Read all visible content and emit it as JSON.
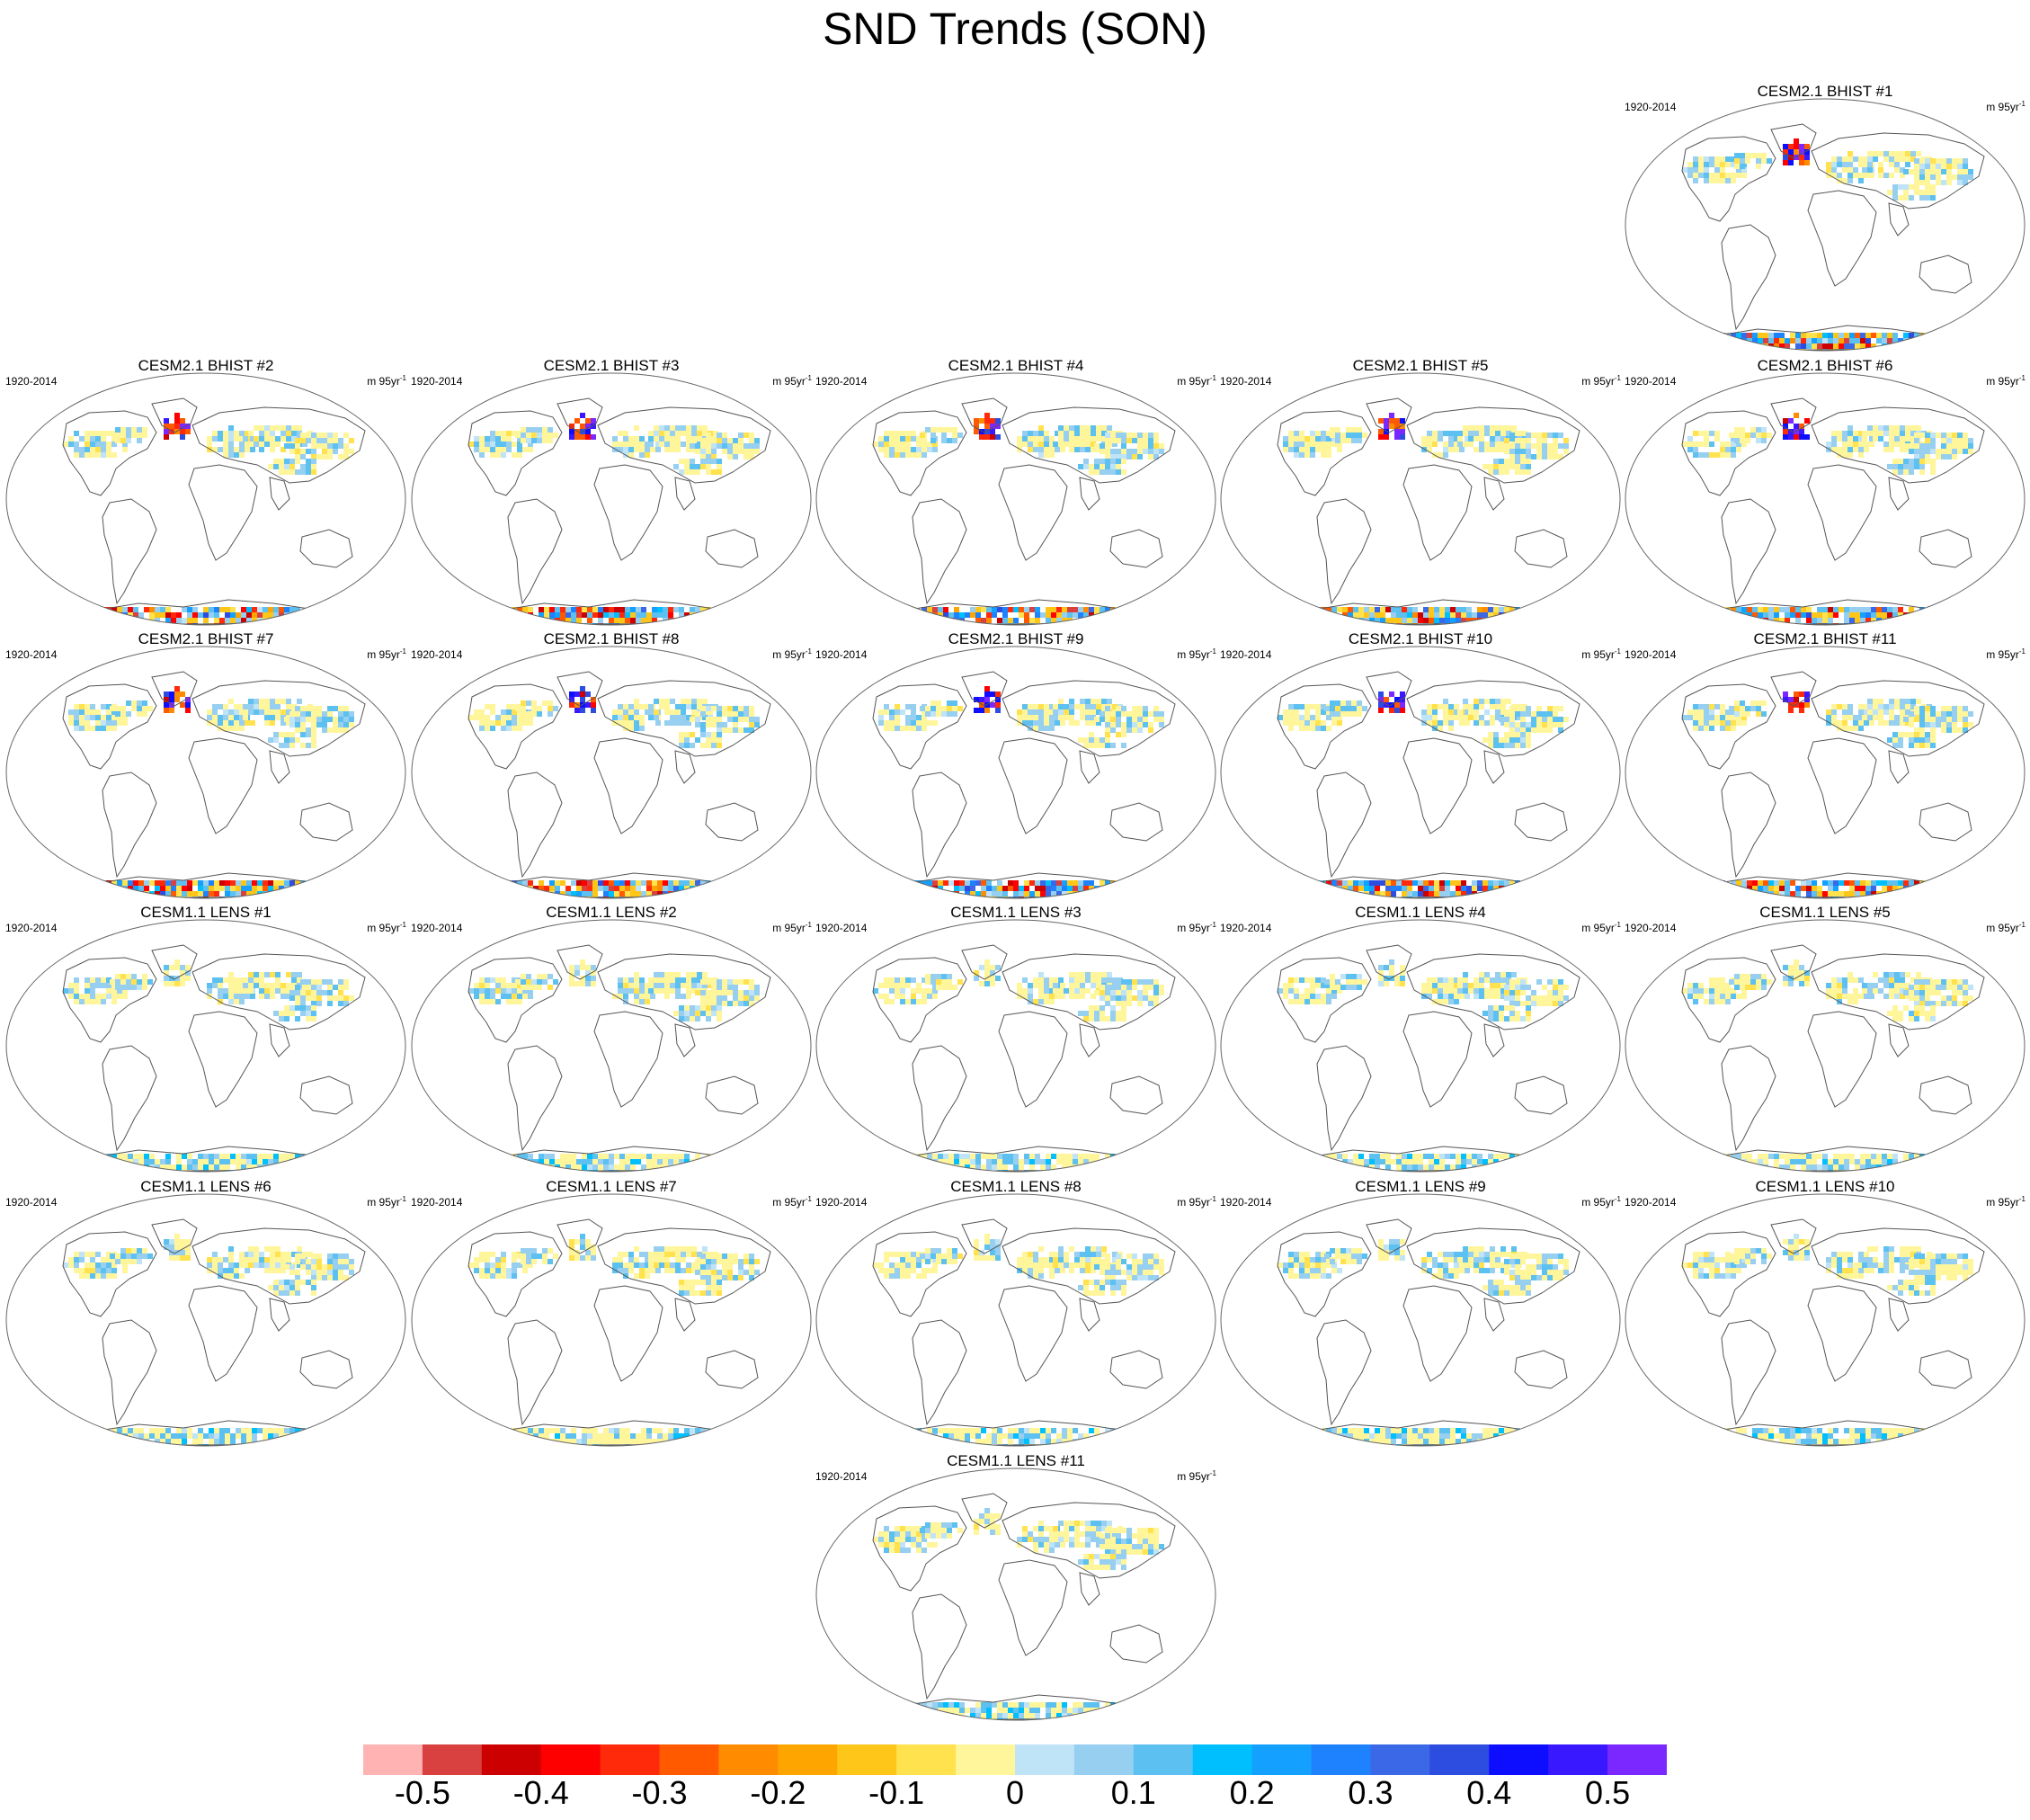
{
  "title": "SND Trends (SON)",
  "period": "1920-2014",
  "units": "m 95yr",
  "units_exponent": "-1",
  "panels": [
    {
      "title": "CESM2.1 BHIST #1",
      "model": "bhist",
      "pattern": 0.9
    },
    {
      "title": "CESM2.1 BHIST #2",
      "model": "bhist",
      "pattern": 0.85
    },
    {
      "title": "CESM2.1 BHIST #3",
      "model": "bhist",
      "pattern": 0.7
    },
    {
      "title": "CESM2.1 BHIST #4",
      "model": "bhist",
      "pattern": 0.95
    },
    {
      "title": "CESM2.1 BHIST #5",
      "model": "bhist",
      "pattern": 0.8
    },
    {
      "title": "CESM2.1 BHIST #6",
      "model": "bhist",
      "pattern": 1.0
    },
    {
      "title": "CESM2.1 BHIST #7",
      "model": "bhist",
      "pattern": 0.9
    },
    {
      "title": "CESM2.1 BHIST #8",
      "model": "bhist",
      "pattern": 0.85
    },
    {
      "title": "CESM2.1 BHIST #9",
      "model": "bhist",
      "pattern": 0.9
    },
    {
      "title": "CESM2.1 BHIST #10",
      "model": "bhist",
      "pattern": 1.0
    },
    {
      "title": "CESM2.1 BHIST #11",
      "model": "bhist",
      "pattern": 0.9
    },
    {
      "title": "CESM1.1 LENS #1",
      "model": "lens",
      "pattern": 0.4
    },
    {
      "title": "CESM1.1 LENS #2",
      "model": "lens",
      "pattern": 0.45
    },
    {
      "title": "CESM1.1 LENS #3",
      "model": "lens",
      "pattern": 0.4
    },
    {
      "title": "CESM1.1 LENS #4",
      "model": "lens",
      "pattern": 0.5
    },
    {
      "title": "CESM1.1 LENS #5",
      "model": "lens",
      "pattern": 0.4
    },
    {
      "title": "CESM1.1 LENS #6",
      "model": "lens",
      "pattern": 0.4
    },
    {
      "title": "CESM1.1 LENS #7",
      "model": "lens",
      "pattern": 0.45
    },
    {
      "title": "CESM1.1 LENS #8",
      "model": "lens",
      "pattern": 0.4
    },
    {
      "title": "CESM1.1 LENS #9",
      "model": "lens",
      "pattern": 0.45
    },
    {
      "title": "CESM1.1 LENS #10",
      "model": "lens",
      "pattern": 0.4
    },
    {
      "title": "CESM1.1 LENS #11",
      "model": "lens",
      "pattern": 0.45
    }
  ],
  "colorbar": {
    "colors": [
      "#ffb3b3",
      "#d94141",
      "#cc0000",
      "#ff0000",
      "#ff2a0a",
      "#ff5a00",
      "#ff8c00",
      "#ffa500",
      "#ffc61a",
      "#ffe24d",
      "#fff59b",
      "#bfe3f7",
      "#96cff0",
      "#5cc0f0",
      "#00bfff",
      "#14a0ff",
      "#1e82ff",
      "#3a68e6",
      "#2d4de0",
      "#0d0dff",
      "#3a18ff",
      "#7a28ff"
    ],
    "labels": [
      "-0.5",
      "-0.4",
      "-0.3",
      "-0.2",
      "-0.1",
      "0",
      "0.1",
      "0.2",
      "0.3",
      "0.4",
      "0.5"
    ]
  }
}
